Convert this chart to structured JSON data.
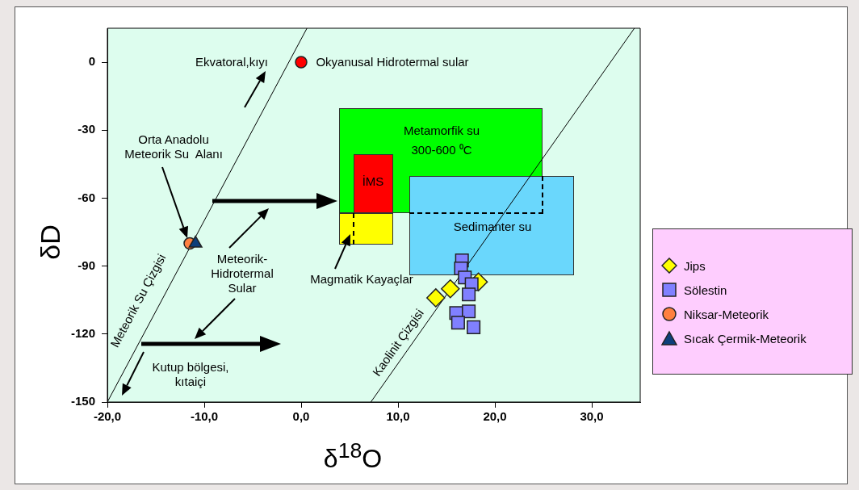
{
  "chart_data": {
    "type": "scatter",
    "xlabel": "δ$^{18}$O",
    "ylabel": "δD",
    "xlim": [
      -20,
      35
    ],
    "ylim": [
      -150,
      15
    ],
    "xticks": [
      {
        "value": -20,
        "label": "-20,0"
      },
      {
        "value": -10,
        "label": "-10,0"
      },
      {
        "value": 0,
        "label": "0,0"
      },
      {
        "value": 10,
        "label": "10,0"
      },
      {
        "value": 20,
        "label": "20,0"
      },
      {
        "value": 30,
        "label": "30,0"
      }
    ],
    "yticks": [
      -150,
      -120,
      -90,
      -60,
      -30,
      0
    ],
    "grid": false,
    "legend": "right",
    "series": [
      {
        "type": "line",
        "color": "#000000",
        "x": [
          -20,
          0.6
        ],
        "values": [
          -150,
          15
        ]
      },
      {
        "type": "line",
        "color": "#000000",
        "x": [
          7.2,
          34.4
        ],
        "values": [
          -150,
          15
        ]
      },
      {
        "type": "scatter",
        "color": "#ff0000",
        "marker": "circle",
        "x": [
          0
        ],
        "values": [
          0
        ]
      },
      {
        "type": "scatter",
        "name": "Jips",
        "color": "#ffff00",
        "marker": "diamond",
        "x": [
          13.9,
          15.4,
          18.3
        ],
        "values": [
          -104,
          -100,
          -97
        ]
      },
      {
        "type": "scatter",
        "name": "Sölestin",
        "color": "#8080ff",
        "marker": "square",
        "x": [
          16.6,
          16.5,
          16.9,
          17.6,
          17.3,
          16.0,
          17.3,
          16.2,
          17.8
        ],
        "values": [
          -87.5,
          -91,
          -95,
          -98,
          -102.5,
          -110.7,
          -110,
          -115,
          -117
        ]
      },
      {
        "type": "scatter",
        "name": "Niksar-Meteorik",
        "color": "#ff8040",
        "marker": "circle",
        "x": [
          -11.5
        ],
        "values": [
          -80
        ]
      },
      {
        "type": "scatter",
        "name": "Sıcak Çermik-Meteorik",
        "color": "#0d3f7a",
        "marker": "triangle",
        "x": [
          -10.9
        ],
        "values": [
          -80
        ]
      }
    ],
    "annotations": [
      "Okyanusal Hidrotermal sular",
      "Ekvatoral,kıyı",
      "Orta Anadolu\nMeteorik Su  Alanı",
      "Meteorik-\nHidrotermal\nSular",
      "Magmatik Kayaçlar",
      "Kutup bölgesi,\nkıtaiçi",
      "Meteorik Su Çizgisi",
      "Kaolinit Çizgisi",
      "Metamorfik su\n300-600 ⁰C",
      "İMS",
      "Sedimanter su"
    ]
  }
}
